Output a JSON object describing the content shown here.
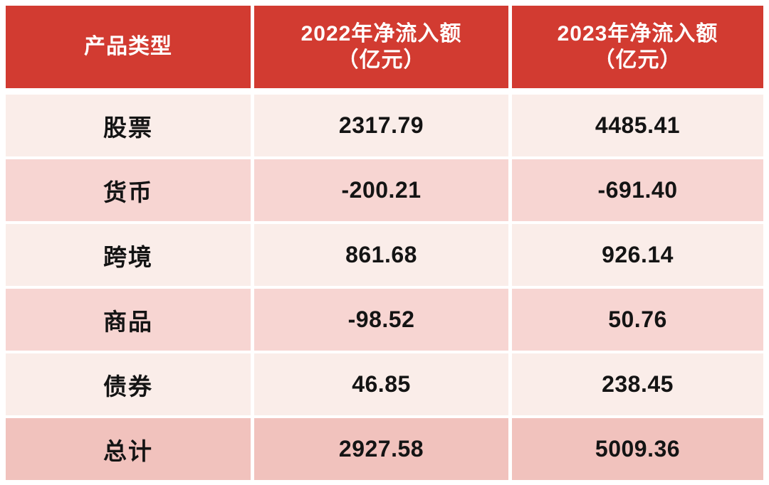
{
  "colors": {
    "header_bg": "#d23b31",
    "header_text": "#ffffff",
    "row_light": "#faede9",
    "row_medium": "#f7d5d2",
    "row_total": "#f1c2bd",
    "cell_text": "#141414",
    "page_bg": "#ffffff"
  },
  "table": {
    "header": {
      "col_product": "产品类型",
      "col_2022_line1": "2022年净流入额",
      "col_2022_line2": "（亿元）",
      "col_2023_line1": "2023年净流入额",
      "col_2023_line2": "（亿元）"
    },
    "rows": [
      {
        "label": "股票",
        "v2022": "2317.79",
        "v2023": "4485.41",
        "tone": "light"
      },
      {
        "label": "货币",
        "v2022": "-200.21",
        "v2023": "-691.40",
        "tone": "medium"
      },
      {
        "label": "跨境",
        "v2022": "861.68",
        "v2023": "926.14",
        "tone": "light"
      },
      {
        "label": "商品",
        "v2022": "-98.52",
        "v2023": "50.76",
        "tone": "medium"
      },
      {
        "label": "债券",
        "v2022": "46.85",
        "v2023": "238.45",
        "tone": "light"
      },
      {
        "label": "总计",
        "v2022": "2927.58",
        "v2023": "5009.36",
        "tone": "total"
      }
    ]
  },
  "chart_data": {
    "type": "table",
    "title": "",
    "columns": [
      "产品类型",
      "2022年净流入额（亿元）",
      "2023年净流入额（亿元）"
    ],
    "categories": [
      "股票",
      "货币",
      "跨境",
      "商品",
      "债券",
      "总计"
    ],
    "series": [
      {
        "name": "2022年净流入额（亿元）",
        "values": [
          2317.79,
          -200.21,
          861.68,
          -98.52,
          46.85,
          2927.58
        ]
      },
      {
        "name": "2023年净流入额（亿元）",
        "values": [
          4485.41,
          -691.4,
          926.14,
          50.76,
          238.45,
          5009.36
        ]
      }
    ]
  }
}
